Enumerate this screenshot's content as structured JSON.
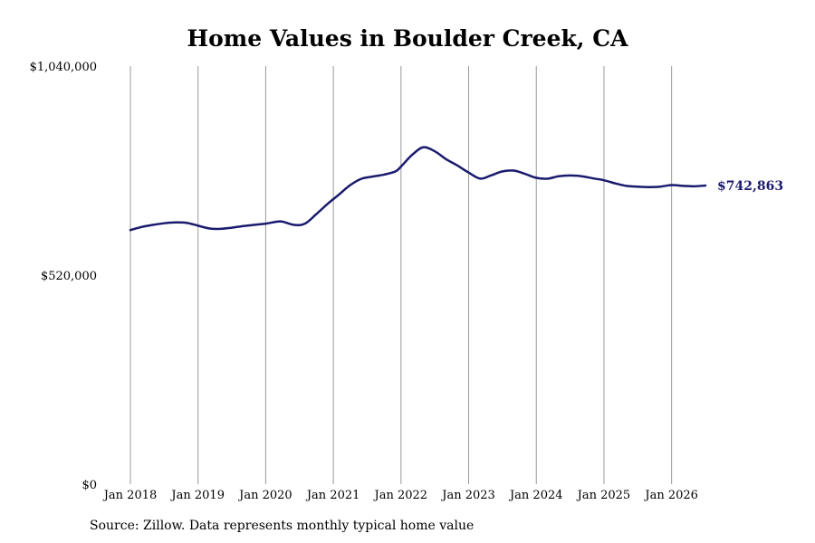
{
  "chart_data": {
    "type": "line",
    "title": "Home Values in Boulder Creek, CA",
    "xlabel": "",
    "ylabel": "",
    "ylim": [
      0,
      1040000
    ],
    "yticks": [
      {
        "value": 0,
        "label": "$0"
      },
      {
        "value": 520000,
        "label": "$520,000"
      },
      {
        "value": 1040000,
        "label": "$1,040,000"
      }
    ],
    "xticks": [
      {
        "value": 2018.0,
        "label": "Jan 2018"
      },
      {
        "value": 2019.0,
        "label": "Jan 2019"
      },
      {
        "value": 2020.0,
        "label": "Jan 2020"
      },
      {
        "value": 2021.0,
        "label": "Jan 2021"
      },
      {
        "value": 2022.0,
        "label": "Jan 2022"
      },
      {
        "value": 2023.0,
        "label": "Jan 2023"
      },
      {
        "value": 2024.0,
        "label": "Jan 2024"
      },
      {
        "value": 2025.0,
        "label": "Jan 2025"
      },
      {
        "value": 2026.0,
        "label": "Jan 2026"
      }
    ],
    "xlim": [
      2018.0,
      2026.5
    ],
    "grid": "vertical",
    "line_color": "#1a1a6e",
    "grid_color": "#999999",
    "end_label": "$742,863",
    "series": [
      {
        "x": [
          2018.0,
          2018.17,
          2018.33,
          2018.5,
          2018.67,
          2018.83,
          2019.0,
          2019.17,
          2019.33,
          2019.5,
          2019.67,
          2019.83,
          2020.0,
          2020.17,
          2020.25,
          2020.42,
          2020.58,
          2020.75,
          2020.92,
          2021.08,
          2021.25,
          2021.42,
          2021.58,
          2021.75,
          2021.92,
          2022.0,
          2022.17,
          2022.33,
          2022.5,
          2022.67,
          2022.83,
          2023.0,
          2023.17,
          2023.33,
          2023.5,
          2023.67,
          2023.83,
          2024.0,
          2024.17,
          2024.33,
          2024.5,
          2024.67,
          2024.83,
          2025.0,
          2025.17,
          2025.33,
          2025.5,
          2025.67,
          2025.83,
          2026.0,
          2026.17,
          2026.33,
          2026.5
        ],
        "y": [
          632000,
          640000,
          645000,
          649000,
          651000,
          650000,
          643000,
          636000,
          635000,
          638000,
          642000,
          645000,
          648000,
          653000,
          653000,
          645000,
          648000,
          672000,
          698000,
          720000,
          744000,
          760000,
          765000,
          770000,
          778000,
          790000,
          820000,
          838000,
          828000,
          808000,
          793000,
          775000,
          760000,
          768000,
          778000,
          780000,
          772000,
          762000,
          760000,
          766000,
          768000,
          766000,
          761000,
          756000,
          748000,
          742000,
          740000,
          739000,
          740000,
          744000,
          742000,
          741000,
          742863
        ]
      }
    ]
  },
  "source_note": "Source: Zillow. Data represents monthly typical home value"
}
